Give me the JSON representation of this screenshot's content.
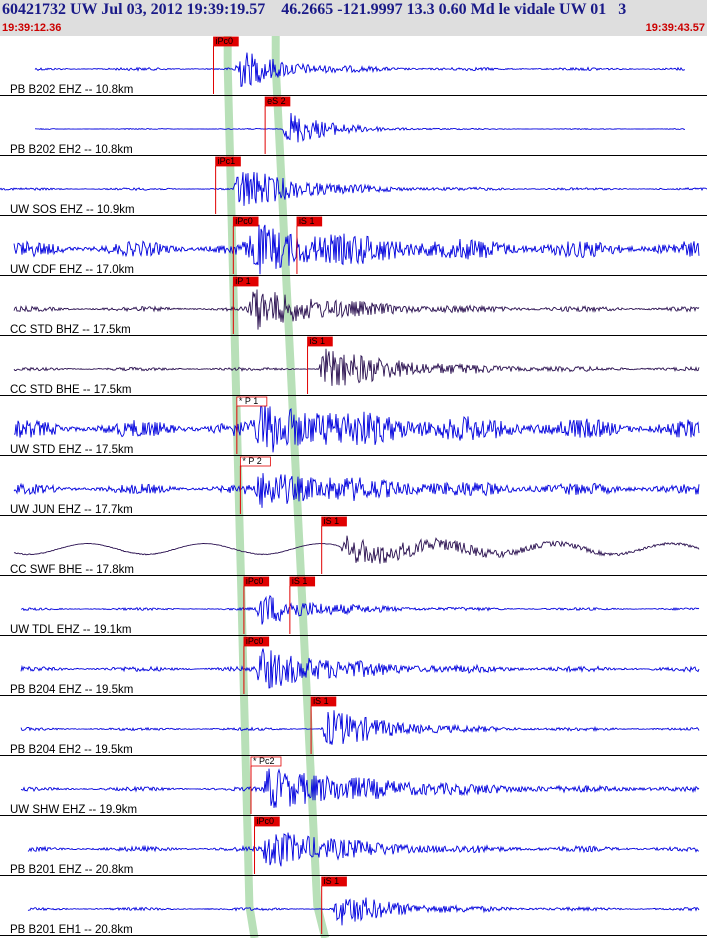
{
  "header": {
    "title": "60421732 UW Jul 03, 2012 19:39:19.57    46.2665 -121.9997 13.3 0.60 Md le vidale UW 01   3",
    "start_time": "19:39:12.36",
    "end_time": "19:39:43.57"
  },
  "colors": {
    "header_bg": "#dedede",
    "title": "#1a1a88",
    "timestamp": "#cc0000",
    "trace_blue": "#0000dd",
    "trace_dark": "#2a1050",
    "pick_red": "#e00000",
    "window_green": "#b8e0b8"
  },
  "channels": [
    {
      "label": "PB B202 EHZ -- 10.8km",
      "color": "blue",
      "picks": [
        {
          "text": "iPc0",
          "style": "filled",
          "t": 0.302
        }
      ],
      "wave": {
        "noise": 0.06,
        "onset": 0.33,
        "amp": 0.85,
        "decay": 5,
        "end": 0.97,
        "start": 0.05
      }
    },
    {
      "label": "PB B202 EH2 -- 10.8km",
      "color": "blue",
      "picks": [
        {
          "text": "eS 2",
          "style": "filled",
          "t": 0.375
        }
      ],
      "wave": {
        "noise": 0.02,
        "onset": 0.4,
        "amp": 0.85,
        "decay": 6,
        "end": 0.97,
        "start": 0.05
      }
    },
    {
      "label": "UW SOS EHZ -- 10.9km",
      "color": "blue",
      "picks": [
        {
          "text": "iPc1",
          "style": "filled",
          "t": 0.305
        }
      ],
      "wave": {
        "noise": 0.05,
        "onset": 0.33,
        "amp": 0.95,
        "decay": 4,
        "end": 1.0,
        "start": 0.0
      }
    },
    {
      "label": "UW CDF EHZ -- 17.0km",
      "color": "blue",
      "picks": [
        {
          "text": "iPc0",
          "style": "filled",
          "t": 0.33
        },
        {
          "text": "iS 1",
          "style": "filled",
          "t": 0.42
        }
      ],
      "wave": {
        "noise": 0.3,
        "onset": 0.35,
        "amp": 0.8,
        "decay": 2,
        "end": 0.99,
        "start": 0.02
      }
    },
    {
      "label": "CC STD BHZ -- 17.5km",
      "color": "dark",
      "picks": [
        {
          "text": "iP 1",
          "style": "filled",
          "t": 0.33
        }
      ],
      "wave": {
        "noise": 0.1,
        "onset": 0.35,
        "amp": 0.85,
        "decay": 3,
        "end": 0.99,
        "start": 0.02
      }
    },
    {
      "label": "CC STD BHE -- 17.5km",
      "color": "dark",
      "picks": [
        {
          "text": "iS 1",
          "style": "filled",
          "t": 0.435
        }
      ],
      "wave": {
        "noise": 0.07,
        "onset": 0.45,
        "amp": 0.85,
        "decay": 3,
        "end": 0.99,
        "start": 0.02
      }
    },
    {
      "label": "UW STD EHZ -- 17.5km",
      "color": "blue",
      "picks": [
        {
          "text": "* P 1",
          "style": "outline",
          "t": 0.335
        }
      ],
      "wave": {
        "noise": 0.35,
        "onset": 0.36,
        "amp": 0.9,
        "decay": 2,
        "end": 0.99,
        "start": 0.02
      }
    },
    {
      "label": "UW JUN EHZ -- 17.7km",
      "color": "blue",
      "picks": [
        {
          "text": "* P 2",
          "style": "outline",
          "t": 0.34
        }
      ],
      "wave": {
        "noise": 0.2,
        "onset": 0.36,
        "amp": 0.65,
        "decay": 2,
        "end": 0.99,
        "start": 0.02
      }
    },
    {
      "label": "CC SWF BHE -- 17.8km",
      "color": "dark",
      "picks": [
        {
          "text": "iS 1",
          "style": "filled",
          "t": 0.455
        }
      ],
      "wave": {
        "noise": 0.02,
        "onset": 0.48,
        "amp": 0.55,
        "decay": 2,
        "end": 0.99,
        "start": 0.02,
        "swell": 0.45
      }
    },
    {
      "label": "UW TDL EHZ -- 19.1km",
      "color": "blue",
      "picks": [
        {
          "text": "iPc0",
          "style": "filled",
          "t": 0.345
        },
        {
          "text": "iS 1",
          "style": "filled",
          "t": 0.41
        }
      ],
      "wave": {
        "noise": 0.05,
        "onset": 0.36,
        "amp": 0.7,
        "decay": 4,
        "end": 0.99,
        "start": 0.03
      }
    },
    {
      "label": "PB B204 EHZ -- 19.5km",
      "color": "blue",
      "picks": [
        {
          "text": "iPc0",
          "style": "filled",
          "t": 0.345
        }
      ],
      "wave": {
        "noise": 0.1,
        "onset": 0.36,
        "amp": 0.85,
        "decay": 3,
        "end": 0.99,
        "start": 0.03
      }
    },
    {
      "label": "PB B204 EH2 -- 19.5km",
      "color": "blue",
      "picks": [
        {
          "text": "iS 1",
          "style": "filled",
          "t": 0.44
        }
      ],
      "wave": {
        "noise": 0.06,
        "onset": 0.455,
        "amp": 0.85,
        "decay": 4,
        "end": 0.99,
        "start": 0.03
      }
    },
    {
      "label": "UW SHW EHZ -- 19.9km",
      "color": "blue",
      "picks": [
        {
          "text": "* Pc2",
          "style": "outline",
          "t": 0.355
        }
      ],
      "wave": {
        "noise": 0.08,
        "onset": 0.37,
        "amp": 0.85,
        "decay": 2,
        "end": 0.99,
        "start": 0.03
      }
    },
    {
      "label": "PB B201 EHZ -- 20.8km",
      "color": "blue",
      "picks": [
        {
          "text": "iPc0",
          "style": "filled",
          "t": 0.36
        }
      ],
      "wave": {
        "noise": 0.1,
        "onset": 0.37,
        "amp": 0.85,
        "decay": 3,
        "end": 0.99,
        "start": 0.04
      }
    },
    {
      "label": "PB B201 EH1 -- 20.8km",
      "color": "blue",
      "picks": [
        {
          "text": "iS 1",
          "style": "filled",
          "t": 0.455
        }
      ],
      "wave": {
        "noise": 0.06,
        "onset": 0.47,
        "amp": 0.7,
        "decay": 4,
        "end": 0.99,
        "start": 0.04
      }
    }
  ]
}
